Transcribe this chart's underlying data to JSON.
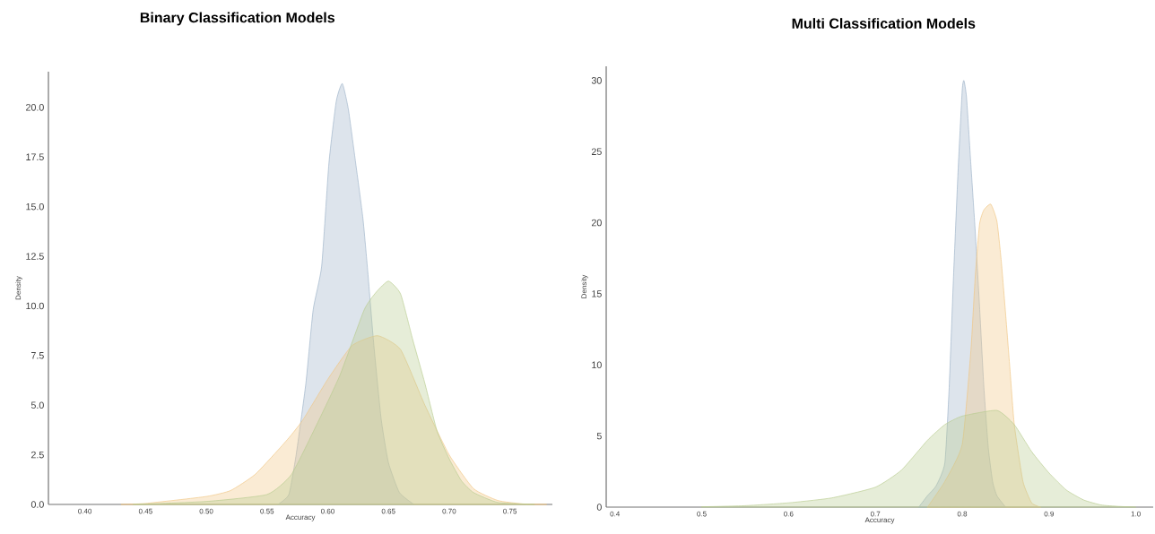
{
  "chart_data": [
    {
      "type": "area",
      "title": "Binary Classification Models",
      "xlabel": "Accuracy",
      "ylabel": "Density",
      "xlim": [
        0.37,
        0.785
      ],
      "ylim": [
        0,
        21.8
      ],
      "xticks": [
        {
          "value": 0.4,
          "label": "0.40"
        },
        {
          "value": 0.45,
          "label": "0.45"
        },
        {
          "value": 0.5,
          "label": "0.50"
        },
        {
          "value": 0.55,
          "label": "0.55"
        },
        {
          "value": 0.6,
          "label": "0.60"
        },
        {
          "value": 0.65,
          "label": "0.65"
        },
        {
          "value": 0.7,
          "label": "0.70"
        },
        {
          "value": 0.75,
          "label": "0.75"
        }
      ],
      "yticks": [
        {
          "value": 0,
          "label": "0.0"
        },
        {
          "value": 2.5,
          "label": "2.5"
        },
        {
          "value": 5,
          "label": "5.0"
        },
        {
          "value": 7.5,
          "label": "7.5"
        },
        {
          "value": 10,
          "label": "10.0"
        },
        {
          "value": 12.5,
          "label": "12.5"
        },
        {
          "value": 15,
          "label": "15.0"
        },
        {
          "value": 17.5,
          "label": "17.5"
        },
        {
          "value": 20,
          "label": "20.0"
        }
      ],
      "series": [
        {
          "color": "#9fb3c8",
          "x": [
            0.559,
            0.568,
            0.574,
            0.582,
            0.588,
            0.595,
            0.601,
            0.607,
            0.612,
            0.617,
            0.623,
            0.629,
            0.633,
            0.638,
            0.644,
            0.65,
            0.659,
            0.671
          ],
          "values": [
            0,
            0.5,
            2.5,
            6.1,
            9.8,
            12,
            17.2,
            20.3,
            21.2,
            19.9,
            17.2,
            14.4,
            11.7,
            8,
            4.3,
            2.1,
            0.6,
            0
          ]
        },
        {
          "color": "#f0c584",
          "x": [
            0.43,
            0.45,
            0.5,
            0.52,
            0.54,
            0.56,
            0.57,
            0.58,
            0.6,
            0.62,
            0.641,
            0.66,
            0.68,
            0.7,
            0.72,
            0.74,
            0.76,
            0.78
          ],
          "values": [
            0,
            0.05,
            0.4,
            0.7,
            1.5,
            2.8,
            3.5,
            4.3,
            6.3,
            8,
            8.5,
            7.8,
            5,
            2.5,
            0.8,
            0.2,
            0.03,
            0
          ]
        },
        {
          "color": "#b8cc90",
          "x": [
            0.44,
            0.5,
            0.55,
            0.57,
            0.59,
            0.61,
            0.63,
            0.64,
            0.65,
            0.66,
            0.67,
            0.68,
            0.69,
            0.7,
            0.71,
            0.72,
            0.74,
            0.77
          ],
          "values": [
            0,
            0.15,
            0.5,
            1.5,
            3.9,
            6.5,
            9.8,
            10.7,
            11.25,
            10.6,
            8.3,
            6.1,
            3.7,
            2.3,
            1.2,
            0.6,
            0.1,
            0
          ]
        }
      ]
    },
    {
      "type": "area",
      "title": "Multi Classification Models",
      "xlabel": "Accuracy",
      "ylabel": "Density",
      "xlim": [
        0.39,
        1.02
      ],
      "ylim": [
        0,
        31
      ],
      "xticks": [
        0.4,
        0.5,
        0.6,
        0.7,
        0.8,
        0.9,
        {
          "value": 1,
          "label": "1.0"
        }
      ],
      "yticks": [
        0,
        5,
        10,
        15,
        20,
        25,
        30
      ],
      "series": [
        {
          "color": "#9fb3c8",
          "x": [
            0.75,
            0.76,
            0.77,
            0.78,
            0.785,
            0.79,
            0.795,
            0.8,
            0.802,
            0.805,
            0.81,
            0.815,
            0.82,
            0.825,
            0.83,
            0.835,
            0.84,
            0.85
          ],
          "values": [
            0,
            0.8,
            1.5,
            3.1,
            8.4,
            16.2,
            23.3,
            29.3,
            30,
            28.8,
            24.1,
            19.4,
            14.1,
            8.4,
            4.2,
            1.8,
            0.8,
            0
          ]
        },
        {
          "color": "#f0c584",
          "x": [
            0.76,
            0.78,
            0.8,
            0.81,
            0.815,
            0.82,
            0.825,
            0.833,
            0.84,
            0.845,
            0.85,
            0.855,
            0.86,
            0.87,
            0.88,
            0.89
          ],
          "values": [
            0,
            1.8,
            4.4,
            11,
            16.2,
            19.9,
            20.9,
            21.3,
            20.1,
            17.3,
            13.6,
            9.7,
            5.8,
            1.8,
            0.3,
            0
          ]
        },
        {
          "color": "#b8cc90",
          "x": [
            0.5,
            0.55,
            0.6,
            0.65,
            0.7,
            0.73,
            0.76,
            0.78,
            0.8,
            0.84,
            0.86,
            0.88,
            0.9,
            0.92,
            0.94,
            0.96,
            0.98,
            1.0
          ],
          "values": [
            0.02,
            0.1,
            0.3,
            0.65,
            1.4,
            2.6,
            4.7,
            5.8,
            6.4,
            6.8,
            5.8,
            3.9,
            2.4,
            1.2,
            0.5,
            0.15,
            0.05,
            0
          ]
        }
      ]
    }
  ]
}
